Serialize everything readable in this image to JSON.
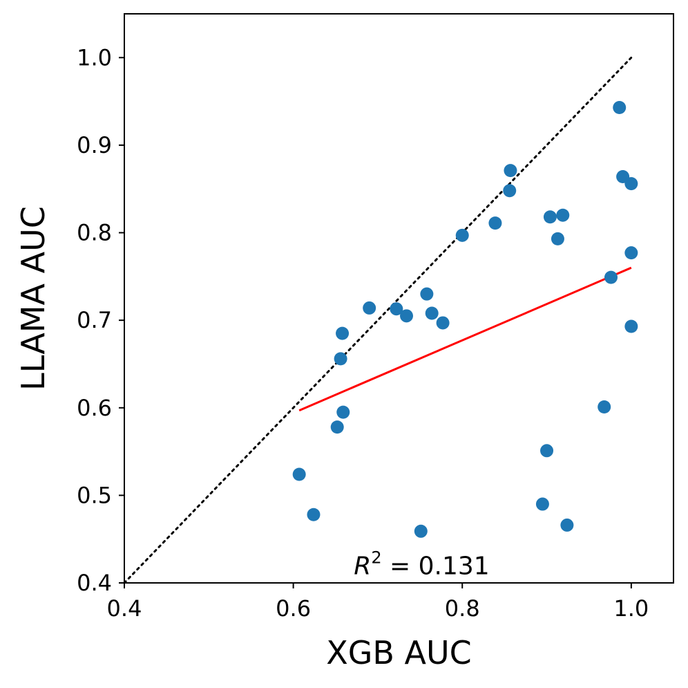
{
  "chart_data": {
    "type": "scatter",
    "xlabel": "XGB AUC",
    "ylabel": "LLAMA AUC",
    "xlim": [
      0.4,
      1.05
    ],
    "ylim": [
      0.4,
      1.05
    ],
    "xticks": [
      "0.4",
      "0.6",
      "0.8",
      "1.0"
    ],
    "yticks": [
      "0.4",
      "0.5",
      "0.6",
      "0.7",
      "0.8",
      "0.9",
      "1.0"
    ],
    "grid": false,
    "point_color": "#1f77b4",
    "fit_color": "#ff0000",
    "identity_color": "#000000",
    "points": [
      {
        "x": 0.607,
        "y": 0.524
      },
      {
        "x": 0.624,
        "y": 0.478
      },
      {
        "x": 0.652,
        "y": 0.578
      },
      {
        "x": 0.656,
        "y": 0.656
      },
      {
        "x": 0.658,
        "y": 0.685
      },
      {
        "x": 0.659,
        "y": 0.595
      },
      {
        "x": 0.69,
        "y": 0.714
      },
      {
        "x": 0.722,
        "y": 0.713
      },
      {
        "x": 0.734,
        "y": 0.705
      },
      {
        "x": 0.751,
        "y": 0.459
      },
      {
        "x": 0.758,
        "y": 0.73
      },
      {
        "x": 0.764,
        "y": 0.708
      },
      {
        "x": 0.777,
        "y": 0.697
      },
      {
        "x": 0.8,
        "y": 0.797
      },
      {
        "x": 0.839,
        "y": 0.811
      },
      {
        "x": 0.856,
        "y": 0.848
      },
      {
        "x": 0.857,
        "y": 0.871
      },
      {
        "x": 0.895,
        "y": 0.49
      },
      {
        "x": 0.9,
        "y": 0.551
      },
      {
        "x": 0.904,
        "y": 0.818
      },
      {
        "x": 0.913,
        "y": 0.793
      },
      {
        "x": 0.919,
        "y": 0.82
      },
      {
        "x": 0.924,
        "y": 0.466
      },
      {
        "x": 0.968,
        "y": 0.601
      },
      {
        "x": 0.976,
        "y": 0.749
      },
      {
        "x": 0.986,
        "y": 0.943
      },
      {
        "x": 0.99,
        "y": 0.864
      },
      {
        "x": 1.0,
        "y": 0.856
      },
      {
        "x": 1.0,
        "y": 0.777
      },
      {
        "x": 1.0,
        "y": 0.693
      }
    ],
    "fit_line": {
      "x": [
        0.607,
        1.0
      ],
      "y": [
        0.597,
        0.76
      ]
    },
    "identity_line": {
      "x": [
        0.4,
        1.0
      ],
      "y": [
        0.4,
        1.0
      ]
    },
    "annotation": {
      "label": "R",
      "superscript": "2",
      "text": " = 0.131"
    }
  }
}
